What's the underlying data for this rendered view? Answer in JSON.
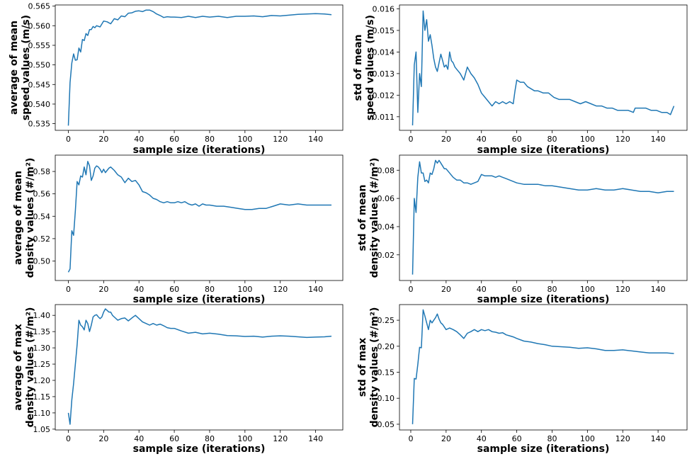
{
  "chart_data": [
    {
      "type": "line",
      "xlabel": "sample size (iterations)",
      "ylabel": [
        "average of mean",
        "speed values (m/s)"
      ],
      "xlim": [
        -7.4,
        155.4
      ],
      "ylim": [
        0.5333,
        0.5653
      ],
      "xticks": [
        0,
        20,
        40,
        60,
        80,
        100,
        120,
        140
      ],
      "yticks": [
        0.535,
        0.54,
        0.545,
        0.55,
        0.555,
        0.56,
        0.565
      ],
      "ytick_labels": [
        "0.535",
        "0.540",
        "0.545",
        "0.550",
        "0.555",
        "0.560",
        "0.565"
      ],
      "grid": false,
      "series": [
        {
          "color": "#1f77b4",
          "x": [
            0,
            1,
            2,
            3,
            4,
            5,
            6,
            7,
            8,
            9,
            10,
            11,
            12,
            13,
            14,
            15,
            16,
            18,
            20,
            22,
            24,
            26,
            28,
            30,
            32,
            34,
            36,
            38,
            40,
            42,
            44,
            46,
            48,
            50,
            52,
            54,
            56,
            58,
            60,
            64,
            68,
            72,
            76,
            80,
            85,
            90,
            95,
            100,
            105,
            110,
            115,
            120,
            125,
            130,
            135,
            140,
            145,
            149
          ],
          "y": [
            0.5345,
            0.5455,
            0.5505,
            0.5528,
            0.5512,
            0.5513,
            0.5543,
            0.5533,
            0.5565,
            0.5562,
            0.558,
            0.5575,
            0.559,
            0.559,
            0.5598,
            0.5595,
            0.56,
            0.5597,
            0.5612,
            0.561,
            0.5605,
            0.5618,
            0.5615,
            0.5625,
            0.5623,
            0.5632,
            0.5633,
            0.5637,
            0.5638,
            0.5636,
            0.564,
            0.564,
            0.5636,
            0.563,
            0.5626,
            0.5621,
            0.5623,
            0.5622,
            0.5622,
            0.5621,
            0.5624,
            0.5621,
            0.5624,
            0.5622,
            0.5624,
            0.5621,
            0.5624,
            0.5624,
            0.5625,
            0.5623,
            0.5626,
            0.5625,
            0.5627,
            0.5629,
            0.563,
            0.5631,
            0.563,
            0.5628
          ]
        }
      ]
    },
    {
      "type": "line",
      "xlabel": "sample size (iterations)",
      "ylabel": [
        "std of mean",
        "speed values (m/s)"
      ],
      "xlim": [
        -6.4,
        156.4
      ],
      "ylim": [
        0.01037,
        0.01618
      ],
      "xticks": [
        0,
        20,
        40,
        60,
        80,
        100,
        120,
        140
      ],
      "yticks": [
        0.011,
        0.012,
        0.013,
        0.014,
        0.015,
        0.016
      ],
      "ytick_labels": [
        "0.011",
        "0.012",
        "0.013",
        "0.014",
        "0.015",
        "0.016"
      ],
      "grid": false,
      "series": [
        {
          "color": "#1f77b4",
          "x": [
            1,
            2,
            3,
            4,
            5,
            6,
            7,
            8,
            9,
            10,
            11,
            12,
            13,
            14,
            15,
            16,
            17,
            18,
            19,
            20,
            21,
            22,
            23,
            24,
            25,
            26,
            27,
            28,
            30,
            32,
            34,
            36,
            38,
            40,
            42,
            44,
            46,
            48,
            50,
            52,
            54,
            56,
            58,
            59,
            60,
            62,
            64,
            66,
            68,
            70,
            72,
            75,
            78,
            81,
            84,
            87,
            90,
            93,
            96,
            99,
            102,
            105,
            108,
            111,
            114,
            117,
            120,
            123,
            126,
            127,
            130,
            133,
            136,
            139,
            142,
            145,
            147,
            149
          ],
          "y": [
            0.0106,
            0.0134,
            0.014,
            0.0112,
            0.013,
            0.0124,
            0.0159,
            0.015,
            0.0155,
            0.0145,
            0.0148,
            0.0143,
            0.0137,
            0.0133,
            0.0131,
            0.0135,
            0.0139,
            0.0136,
            0.0133,
            0.0134,
            0.0132,
            0.014,
            0.0136,
            0.0135,
            0.0133,
            0.0132,
            0.0131,
            0.013,
            0.0127,
            0.0133,
            0.013,
            0.0128,
            0.0125,
            0.0121,
            0.0119,
            0.0117,
            0.0115,
            0.0117,
            0.0116,
            0.0117,
            0.0116,
            0.0117,
            0.0116,
            0.0122,
            0.0127,
            0.0126,
            0.0126,
            0.0124,
            0.0123,
            0.0122,
            0.0122,
            0.0121,
            0.0121,
            0.0119,
            0.0118,
            0.0118,
            0.0118,
            0.0117,
            0.0116,
            0.0117,
            0.0116,
            0.0115,
            0.0115,
            0.0114,
            0.0114,
            0.0113,
            0.0113,
            0.0113,
            0.0112,
            0.0114,
            0.0114,
            0.0114,
            0.0113,
            0.0113,
            0.0112,
            0.0112,
            0.0111,
            0.0115
          ]
        }
      ]
    },
    {
      "type": "line",
      "xlabel": "sample size (iterations)",
      "ylabel": [
        "average of mean",
        "density values (#/m²)"
      ],
      "xlim": [
        -7.4,
        155.4
      ],
      "ylim": [
        0.4826,
        0.5946
      ],
      "xticks": [
        0,
        20,
        40,
        60,
        80,
        100,
        120,
        140
      ],
      "yticks": [
        0.5,
        0.52,
        0.54,
        0.56,
        0.58
      ],
      "ytick_labels": [
        "0.50",
        "0.52",
        "0.54",
        "0.56",
        "0.58"
      ],
      "grid": false,
      "series": [
        {
          "color": "#1f77b4",
          "x": [
            0,
            1,
            2,
            3,
            4,
            5,
            6,
            7,
            8,
            9,
            10,
            11,
            12,
            13,
            14,
            15,
            16,
            17,
            18,
            19,
            20,
            21,
            22,
            23,
            24,
            26,
            28,
            30,
            32,
            34,
            36,
            38,
            40,
            42,
            44,
            46,
            48,
            50,
            52,
            54,
            56,
            58,
            60,
            62,
            64,
            66,
            68,
            70,
            72,
            74,
            76,
            78,
            80,
            84,
            88,
            92,
            96,
            100,
            104,
            108,
            112,
            116,
            120,
            125,
            130,
            135,
            140,
            145,
            149
          ],
          "y": [
            0.49,
            0.493,
            0.527,
            0.523,
            0.545,
            0.571,
            0.568,
            0.576,
            0.575,
            0.584,
            0.577,
            0.589,
            0.585,
            0.572,
            0.576,
            0.583,
            0.585,
            0.584,
            0.582,
            0.579,
            0.582,
            0.579,
            0.581,
            0.583,
            0.584,
            0.581,
            0.577,
            0.575,
            0.57,
            0.574,
            0.571,
            0.572,
            0.568,
            0.562,
            0.561,
            0.559,
            0.556,
            0.555,
            0.553,
            0.552,
            0.553,
            0.552,
            0.552,
            0.553,
            0.552,
            0.553,
            0.551,
            0.55,
            0.551,
            0.549,
            0.551,
            0.55,
            0.55,
            0.549,
            0.549,
            0.548,
            0.547,
            0.546,
            0.546,
            0.547,
            0.547,
            0.549,
            0.551,
            0.55,
            0.551,
            0.55,
            0.55,
            0.55,
            0.55
          ]
        }
      ]
    },
    {
      "type": "line",
      "xlabel": "sample size (iterations)",
      "ylabel": [
        "std of mean",
        "density values (#/m²)"
      ],
      "xlim": [
        -6.4,
        156.4
      ],
      "ylim": [
        0.0018,
        0.0907
      ],
      "xticks": [
        0,
        20,
        40,
        60,
        80,
        100,
        120,
        140
      ],
      "yticks": [
        0.02,
        0.04,
        0.06,
        0.08
      ],
      "ytick_labels": [
        "0.02",
        "0.04",
        "0.06",
        "0.08"
      ],
      "grid": false,
      "series": [
        {
          "color": "#1f77b4",
          "x": [
            1,
            2,
            3,
            4,
            5,
            6,
            7,
            8,
            9,
            10,
            11,
            12,
            13,
            14,
            15,
            16,
            17,
            18,
            19,
            20,
            22,
            24,
            26,
            28,
            30,
            32,
            34,
            36,
            38,
            40,
            42,
            44,
            46,
            48,
            50,
            52,
            54,
            56,
            58,
            60,
            64,
            68,
            72,
            76,
            80,
            85,
            90,
            95,
            100,
            105,
            110,
            115,
            120,
            125,
            130,
            135,
            140,
            145,
            149
          ],
          "y": [
            0.006,
            0.06,
            0.05,
            0.075,
            0.086,
            0.078,
            0.078,
            0.072,
            0.073,
            0.071,
            0.078,
            0.077,
            0.081,
            0.087,
            0.085,
            0.087,
            0.085,
            0.083,
            0.081,
            0.081,
            0.078,
            0.075,
            0.073,
            0.073,
            0.071,
            0.071,
            0.07,
            0.071,
            0.072,
            0.077,
            0.076,
            0.076,
            0.076,
            0.075,
            0.076,
            0.075,
            0.074,
            0.073,
            0.072,
            0.071,
            0.07,
            0.07,
            0.07,
            0.069,
            0.069,
            0.068,
            0.067,
            0.066,
            0.066,
            0.067,
            0.066,
            0.066,
            0.067,
            0.066,
            0.065,
            0.065,
            0.064,
            0.065,
            0.065
          ]
        }
      ]
    },
    {
      "type": "line",
      "xlabel": "sample size (iterations)",
      "ylabel": [
        "average of max",
        "density values (#/m²)"
      ],
      "xlim": [
        -7.4,
        155.4
      ],
      "ylim": [
        1.0475,
        1.4331
      ],
      "xticks": [
        0,
        20,
        40,
        60,
        80,
        100,
        120,
        140
      ],
      "yticks": [
        1.05,
        1.1,
        1.15,
        1.2,
        1.25,
        1.3,
        1.35,
        1.4
      ],
      "ytick_labels": [
        "1.05",
        "1.10",
        "1.15",
        "1.20",
        "1.25",
        "1.30",
        "1.35",
        "1.40"
      ],
      "grid": false,
      "series": [
        {
          "color": "#1f77b4",
          "x": [
            0,
            1,
            2,
            3,
            4,
            5,
            6,
            7,
            8,
            9,
            10,
            11,
            12,
            13,
            14,
            15,
            16,
            17,
            18,
            19,
            20,
            21,
            22,
            23,
            24,
            25,
            26,
            28,
            30,
            32,
            34,
            36,
            38,
            40,
            42,
            44,
            46,
            48,
            50,
            52,
            54,
            56,
            58,
            60,
            64,
            68,
            72,
            76,
            80,
            85,
            90,
            95,
            100,
            105,
            110,
            115,
            120,
            125,
            130,
            135,
            140,
            145,
            149
          ],
          "y": [
            1.1,
            1.065,
            1.14,
            1.19,
            1.25,
            1.31,
            1.385,
            1.37,
            1.365,
            1.355,
            1.385,
            1.375,
            1.35,
            1.37,
            1.395,
            1.4,
            1.402,
            1.395,
            1.39,
            1.395,
            1.41,
            1.42,
            1.415,
            1.41,
            1.41,
            1.4,
            1.395,
            1.385,
            1.39,
            1.392,
            1.383,
            1.392,
            1.4,
            1.39,
            1.38,
            1.375,
            1.37,
            1.375,
            1.37,
            1.373,
            1.368,
            1.362,
            1.36,
            1.36,
            1.352,
            1.345,
            1.348,
            1.343,
            1.345,
            1.342,
            1.338,
            1.337,
            1.335,
            1.336,
            1.333,
            1.336,
            1.337,
            1.336,
            1.334,
            1.332,
            1.333,
            1.334,
            1.336
          ]
        }
      ]
    },
    {
      "type": "line",
      "xlabel": "sample size (iterations)",
      "ylabel": [
        "std of max",
        "density values (#/m²)"
      ],
      "xlim": [
        -6.4,
        156.4
      ],
      "ylim": [
        0.039,
        0.2801
      ],
      "xticks": [
        0,
        20,
        40,
        60,
        80,
        100,
        120,
        140
      ],
      "yticks": [
        0.05,
        0.1,
        0.15,
        0.2,
        0.25
      ],
      "ytick_labels": [
        "0.05",
        "0.10",
        "0.15",
        "0.20",
        "0.25"
      ],
      "grid": false,
      "series": [
        {
          "color": "#1f77b4",
          "x": [
            1,
            2,
            3,
            4,
            5,
            6,
            7,
            8,
            9,
            10,
            11,
            12,
            13,
            14,
            15,
            16,
            17,
            18,
            19,
            20,
            22,
            24,
            26,
            28,
            30,
            32,
            34,
            36,
            38,
            40,
            42,
            44,
            46,
            48,
            50,
            52,
            54,
            56,
            58,
            60,
            64,
            68,
            72,
            76,
            80,
            85,
            90,
            95,
            100,
            105,
            110,
            115,
            120,
            125,
            130,
            135,
            140,
            145,
            149
          ],
          "y": [
            0.05,
            0.138,
            0.137,
            0.165,
            0.198,
            0.197,
            0.27,
            0.258,
            0.245,
            0.232,
            0.25,
            0.245,
            0.25,
            0.255,
            0.262,
            0.252,
            0.245,
            0.242,
            0.237,
            0.232,
            0.235,
            0.232,
            0.228,
            0.222,
            0.215,
            0.225,
            0.228,
            0.232,
            0.228,
            0.232,
            0.23,
            0.232,
            0.228,
            0.227,
            0.225,
            0.226,
            0.222,
            0.22,
            0.218,
            0.215,
            0.21,
            0.208,
            0.205,
            0.203,
            0.2,
            0.199,
            0.198,
            0.196,
            0.197,
            0.195,
            0.192,
            0.192,
            0.193,
            0.191,
            0.189,
            0.187,
            0.187,
            0.187,
            0.186
          ]
        }
      ]
    }
  ]
}
